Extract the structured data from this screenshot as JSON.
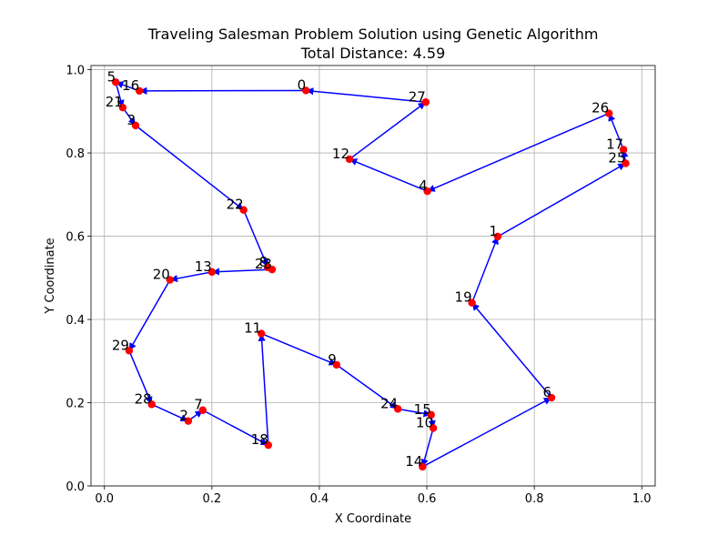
{
  "chart_data": {
    "type": "scatter",
    "title": "Traveling Salesman Problem Solution using Genetic Algorithm",
    "subtitle": "Total Distance: 4.59",
    "xlabel": "X Coordinate",
    "ylabel": "Y Coordinate",
    "xlim": [
      -0.025,
      1.025
    ],
    "ylim": [
      0.0,
      1.01
    ],
    "xticks": [
      "0.0",
      "0.2",
      "0.4",
      "0.6",
      "0.8",
      "1.0"
    ],
    "yticks": [
      "0.0",
      "0.2",
      "0.4",
      "0.6",
      "0.8",
      "1.0"
    ],
    "grid": true,
    "point_color": "#ff0000",
    "edge_color": "#0000ff",
    "cities": [
      {
        "label": "0",
        "x": 0.375,
        "y": 0.95
      },
      {
        "label": "1",
        "x": 0.732,
        "y": 0.599
      },
      {
        "label": "2",
        "x": 0.156,
        "y": 0.156
      },
      {
        "label": "3",
        "x": 0.058,
        "y": 0.866
      },
      {
        "label": "4",
        "x": 0.601,
        "y": 0.708
      },
      {
        "label": "5",
        "x": 0.021,
        "y": 0.97
      },
      {
        "label": "6",
        "x": 0.832,
        "y": 0.212
      },
      {
        "label": "7",
        "x": 0.183,
        "y": 0.182
      },
      {
        "label": "8",
        "x": 0.304,
        "y": 0.525
      },
      {
        "label": "9",
        "x": 0.432,
        "y": 0.291
      },
      {
        "label": "10",
        "x": 0.612,
        "y": 0.139
      },
      {
        "label": "11",
        "x": 0.292,
        "y": 0.366
      },
      {
        "label": "12",
        "x": 0.456,
        "y": 0.785
      },
      {
        "label": "13",
        "x": 0.2,
        "y": 0.514
      },
      {
        "label": "14",
        "x": 0.592,
        "y": 0.046
      },
      {
        "label": "15",
        "x": 0.608,
        "y": 0.171
      },
      {
        "label": "16",
        "x": 0.065,
        "y": 0.949
      },
      {
        "label": "17",
        "x": 0.966,
        "y": 0.808
      },
      {
        "label": "18",
        "x": 0.305,
        "y": 0.098
      },
      {
        "label": "19",
        "x": 0.684,
        "y": 0.44
      },
      {
        "label": "20",
        "x": 0.122,
        "y": 0.495
      },
      {
        "label": "21",
        "x": 0.034,
        "y": 0.909
      },
      {
        "label": "22",
        "x": 0.259,
        "y": 0.663
      },
      {
        "label": "23",
        "x": 0.312,
        "y": 0.52
      },
      {
        "label": "24",
        "x": 0.546,
        "y": 0.185
      },
      {
        "label": "25",
        "x": 0.97,
        "y": 0.775
      },
      {
        "label": "26",
        "x": 0.939,
        "y": 0.895
      },
      {
        "label": "27",
        "x": 0.598,
        "y": 0.922
      },
      {
        "label": "28",
        "x": 0.088,
        "y": 0.196
      },
      {
        "label": "29",
        "x": 0.046,
        "y": 0.325
      }
    ],
    "route": [
      0,
      16,
      5,
      21,
      3,
      22,
      8,
      23,
      13,
      20,
      29,
      28,
      2,
      7,
      18,
      11,
      9,
      24,
      15,
      10,
      14,
      6,
      19,
      1,
      25,
      17,
      26,
      4,
      12,
      27,
      0
    ]
  }
}
